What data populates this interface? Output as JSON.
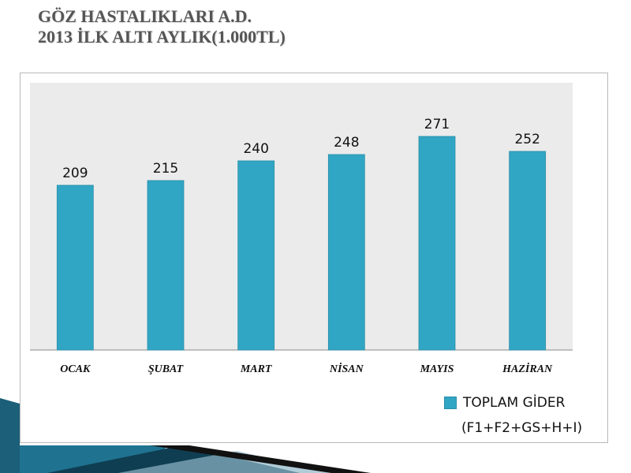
{
  "slide": {
    "title_line1": "GÖZ HASTALIKLARI A.D.",
    "title_line2": "2013 İLK ALTI AYLIK(1.000TL)"
  },
  "chart_data": {
    "type": "bar",
    "categories": [
      "OCAK",
      "ŞUBAT",
      "MART",
      "NİSAN",
      "MAYIS",
      "HAZİRAN"
    ],
    "values": [
      209,
      215,
      240,
      248,
      271,
      252
    ],
    "series": [
      {
        "name": "TOPLAM GİDER",
        "values": [
          209,
          215,
          240,
          248,
          271,
          252
        ]
      }
    ],
    "legend": {
      "label": "TOPLAM GİDER",
      "sublabel": "(F1+F2+GS+H+I)",
      "position": "bottom-right"
    },
    "ylim": [
      0,
      300
    ],
    "grid": false,
    "bar_color": "#31a6c4",
    "plot_background": "#ebebeb"
  }
}
